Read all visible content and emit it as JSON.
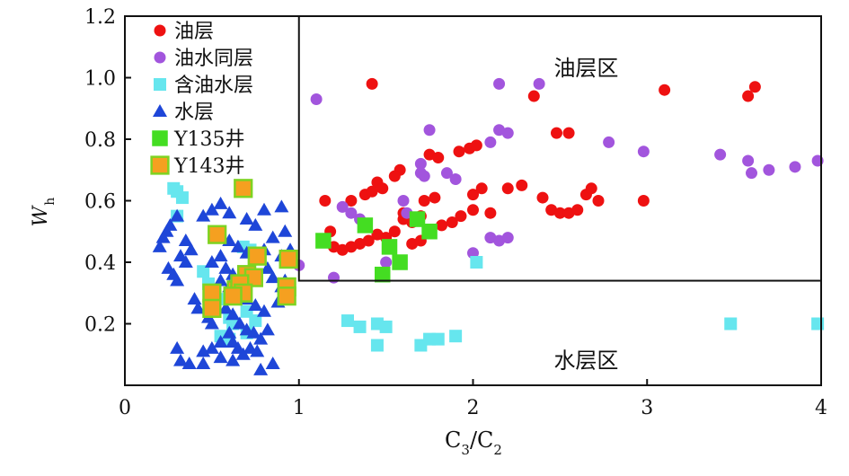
{
  "chart_data": {
    "type": "scatter",
    "title": "",
    "xlabel": "C",
    "xlabel_sub1": "3",
    "xlabel_mid": "/C",
    "xlabel_sub2": "2",
    "ylabel": "W",
    "ylabel_sub": "h",
    "xlim": [
      0,
      4
    ],
    "ylim": [
      0,
      1.2
    ],
    "xticks": [
      0,
      1,
      2,
      3,
      4
    ],
    "xtick_labels": [
      "0",
      "1",
      "2",
      "3",
      "4"
    ],
    "yticks": [
      0.2,
      0.4,
      0.6,
      0.8,
      1.0,
      1.2
    ],
    "ytick_labels": [
      "0.2",
      "0.4",
      "0.6",
      "0.8",
      "1.0",
      "1.2"
    ],
    "grid": false,
    "legend_position": "top-left",
    "regions": [
      {
        "label": "油层区",
        "x": [
          1.0,
          4.0
        ],
        "y": [
          0.34,
          1.2
        ],
        "label_x": 2.65,
        "label_y": 1.03
      },
      {
        "label": "水层区",
        "label_x": 2.65,
        "label_y": 0.08
      }
    ],
    "series": [
      {
        "name": "油层",
        "marker": "circle",
        "color": "#ee1111",
        "points": [
          [
            1.42,
            0.98
          ],
          [
            2.35,
            0.94
          ],
          [
            3.1,
            0.96
          ],
          [
            3.58,
            0.94
          ],
          [
            3.62,
            0.97
          ],
          [
            2.48,
            0.82
          ],
          [
            2.55,
            0.82
          ],
          [
            1.75,
            0.75
          ],
          [
            1.8,
            0.74
          ],
          [
            1.92,
            0.76
          ],
          [
            1.98,
            0.77
          ],
          [
            2.02,
            0.78
          ],
          [
            1.58,
            0.7
          ],
          [
            1.55,
            0.68
          ],
          [
            1.45,
            0.66
          ],
          [
            1.48,
            0.64
          ],
          [
            1.38,
            0.62
          ],
          [
            1.42,
            0.63
          ],
          [
            1.15,
            0.6
          ],
          [
            1.3,
            0.6
          ],
          [
            1.72,
            0.6
          ],
          [
            1.78,
            0.61
          ],
          [
            2.0,
            0.62
          ],
          [
            2.05,
            0.64
          ],
          [
            2.2,
            0.64
          ],
          [
            2.28,
            0.65
          ],
          [
            2.4,
            0.61
          ],
          [
            2.45,
            0.57
          ],
          [
            2.5,
            0.56
          ],
          [
            2.55,
            0.56
          ],
          [
            2.6,
            0.57
          ],
          [
            2.65,
            0.62
          ],
          [
            2.68,
            0.64
          ],
          [
            2.72,
            0.6
          ],
          [
            2.98,
            0.6
          ],
          [
            2.1,
            0.56
          ],
          [
            1.88,
            0.53
          ],
          [
            1.93,
            0.55
          ],
          [
            1.82,
            0.52
          ],
          [
            1.7,
            0.55
          ],
          [
            1.65,
            0.53
          ],
          [
            1.6,
            0.54
          ],
          [
            1.55,
            0.5
          ],
          [
            1.5,
            0.48
          ],
          [
            1.45,
            0.49
          ],
          [
            1.4,
            0.47
          ],
          [
            1.35,
            0.46
          ],
          [
            1.3,
            0.45
          ],
          [
            1.25,
            0.44
          ],
          [
            1.2,
            0.45
          ],
          [
            1.18,
            0.5
          ],
          [
            1.65,
            0.46
          ],
          [
            1.7,
            0.47
          ],
          [
            1.6,
            0.56
          ],
          [
            2.0,
            0.57
          ]
        ]
      },
      {
        "name": "油水同层",
        "marker": "circle",
        "color": "#a255dd",
        "points": [
          [
            1.1,
            0.93
          ],
          [
            2.15,
            0.98
          ],
          [
            2.38,
            0.98
          ],
          [
            1.75,
            0.83
          ],
          [
            2.1,
            0.79
          ],
          [
            2.15,
            0.83
          ],
          [
            2.2,
            0.82
          ],
          [
            2.78,
            0.79
          ],
          [
            2.98,
            0.76
          ],
          [
            3.42,
            0.75
          ],
          [
            3.58,
            0.73
          ],
          [
            3.6,
            0.69
          ],
          [
            3.7,
            0.7
          ],
          [
            3.85,
            0.71
          ],
          [
            3.98,
            0.73
          ],
          [
            1.7,
            0.72
          ],
          [
            1.7,
            0.69
          ],
          [
            1.72,
            0.68
          ],
          [
            1.85,
            0.69
          ],
          [
            1.9,
            0.67
          ],
          [
            1.6,
            0.6
          ],
          [
            1.25,
            0.58
          ],
          [
            1.3,
            0.56
          ],
          [
            1.35,
            0.54
          ],
          [
            1.62,
            0.56
          ],
          [
            2.1,
            0.48
          ],
          [
            2.15,
            0.47
          ],
          [
            2.2,
            0.48
          ],
          [
            2.0,
            0.43
          ],
          [
            1.5,
            0.4
          ],
          [
            1.2,
            0.35
          ],
          [
            1.0,
            0.39
          ]
        ]
      },
      {
        "name": "含油水层",
        "marker": "square",
        "color": "#66e6ee",
        "points": [
          [
            0.28,
            0.64
          ],
          [
            0.3,
            0.63
          ],
          [
            0.33,
            0.61
          ],
          [
            0.3,
            0.55
          ],
          [
            0.68,
            0.45
          ],
          [
            0.72,
            0.44
          ],
          [
            0.45,
            0.37
          ],
          [
            0.48,
            0.33
          ],
          [
            0.55,
            0.28
          ],
          [
            0.6,
            0.22
          ],
          [
            0.7,
            0.24
          ],
          [
            0.62,
            0.2
          ],
          [
            0.7,
            0.17
          ],
          [
            0.75,
            0.21
          ],
          [
            0.6,
            0.15
          ],
          [
            0.55,
            0.16
          ],
          [
            1.28,
            0.21
          ],
          [
            1.35,
            0.19
          ],
          [
            1.45,
            0.2
          ],
          [
            1.5,
            0.19
          ],
          [
            1.45,
            0.13
          ],
          [
            1.7,
            0.13
          ],
          [
            1.75,
            0.15
          ],
          [
            1.8,
            0.15
          ],
          [
            1.9,
            0.16
          ],
          [
            2.02,
            0.4
          ],
          [
            3.48,
            0.2
          ],
          [
            3.98,
            0.2
          ]
        ]
      },
      {
        "name": "水层",
        "marker": "triangle",
        "color": "#1e46d8",
        "points": [
          [
            0.2,
            0.45
          ],
          [
            0.22,
            0.48
          ],
          [
            0.24,
            0.5
          ],
          [
            0.26,
            0.52
          ],
          [
            0.3,
            0.55
          ],
          [
            0.35,
            0.47
          ],
          [
            0.38,
            0.44
          ],
          [
            0.32,
            0.42
          ],
          [
            0.35,
            0.4
          ],
          [
            0.25,
            0.38
          ],
          [
            0.28,
            0.36
          ],
          [
            0.3,
            0.34
          ],
          [
            0.45,
            0.55
          ],
          [
            0.5,
            0.57
          ],
          [
            0.55,
            0.59
          ],
          [
            0.6,
            0.56
          ],
          [
            0.7,
            0.54
          ],
          [
            0.8,
            0.57
          ],
          [
            0.9,
            0.58
          ],
          [
            0.75,
            0.52
          ],
          [
            0.85,
            0.48
          ],
          [
            0.92,
            0.5
          ],
          [
            0.6,
            0.47
          ],
          [
            0.65,
            0.45
          ],
          [
            0.7,
            0.43
          ],
          [
            0.55,
            0.42
          ],
          [
            0.5,
            0.4
          ],
          [
            0.58,
            0.38
          ],
          [
            0.62,
            0.36
          ],
          [
            0.8,
            0.44
          ],
          [
            0.9,
            0.42
          ],
          [
            0.95,
            0.44
          ],
          [
            0.82,
            0.38
          ],
          [
            0.85,
            0.35
          ],
          [
            0.9,
            0.32
          ],
          [
            0.92,
            0.34
          ],
          [
            0.55,
            0.34
          ],
          [
            0.6,
            0.32
          ],
          [
            0.65,
            0.3
          ],
          [
            0.7,
            0.28
          ],
          [
            0.75,
            0.26
          ],
          [
            0.8,
            0.24
          ],
          [
            0.88,
            0.27
          ],
          [
            0.58,
            0.25
          ],
          [
            0.62,
            0.23
          ],
          [
            0.66,
            0.2
          ],
          [
            0.7,
            0.18
          ],
          [
            0.74,
            0.17
          ],
          [
            0.78,
            0.15
          ],
          [
            0.82,
            0.18
          ],
          [
            0.6,
            0.17
          ],
          [
            0.62,
            0.14
          ],
          [
            0.65,
            0.12
          ],
          [
            0.68,
            0.1
          ],
          [
            0.72,
            0.12
          ],
          [
            0.76,
            0.11
          ],
          [
            0.55,
            0.14
          ],
          [
            0.5,
            0.12
          ],
          [
            0.45,
            0.11
          ],
          [
            0.3,
            0.12
          ],
          [
            0.32,
            0.08
          ],
          [
            0.37,
            0.07
          ],
          [
            0.45,
            0.07
          ],
          [
            0.55,
            0.09
          ],
          [
            0.62,
            0.08
          ],
          [
            0.78,
            0.05
          ],
          [
            0.85,
            0.07
          ],
          [
            0.5,
            0.2
          ],
          [
            0.48,
            0.22
          ],
          [
            0.42,
            0.25
          ],
          [
            0.4,
            0.28
          ]
        ]
      },
      {
        "name": "Y135井",
        "marker": "square",
        "color": "#44dd22",
        "points": [
          [
            1.14,
            0.47
          ],
          [
            1.38,
            0.52
          ],
          [
            1.52,
            0.45
          ],
          [
            1.58,
            0.4
          ],
          [
            1.48,
            0.36
          ],
          [
            1.68,
            0.54
          ],
          [
            1.75,
            0.5
          ]
        ]
      },
      {
        "name": "Y143井",
        "marker": "square",
        "color": "#f5a020",
        "edge_color": "#7ed321",
        "points": [
          [
            0.68,
            0.64
          ],
          [
            0.53,
            0.49
          ],
          [
            0.76,
            0.42
          ],
          [
            0.94,
            0.41
          ],
          [
            0.7,
            0.36
          ],
          [
            0.74,
            0.35
          ],
          [
            0.64,
            0.31
          ],
          [
            0.66,
            0.33
          ],
          [
            0.68,
            0.3
          ],
          [
            0.5,
            0.3
          ],
          [
            0.5,
            0.25
          ],
          [
            0.62,
            0.29
          ],
          [
            0.93,
            0.32
          ],
          [
            0.93,
            0.29
          ]
        ]
      }
    ]
  }
}
